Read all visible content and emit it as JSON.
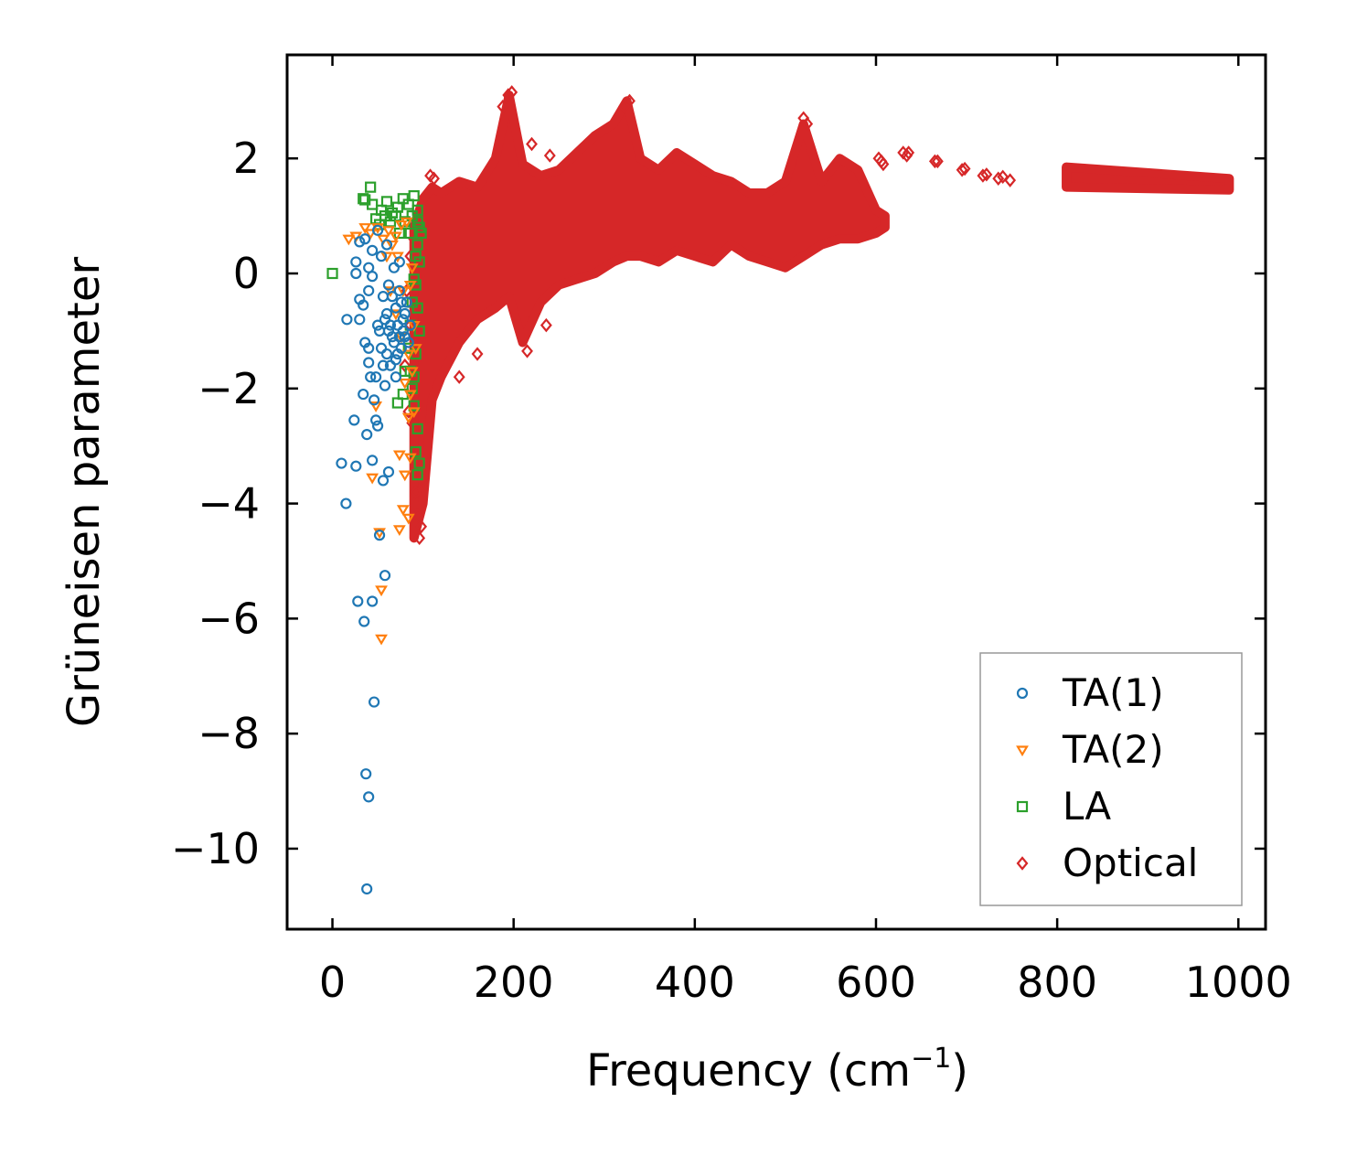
{
  "chart_data": {
    "type": "scatter",
    "title": "",
    "xlabel": "Frequency (cm",
    "xlabel_sup": "−1",
    "xlabel_close": ")",
    "ylabel": "Grüneisen parameter",
    "xlim": [
      -50,
      1030
    ],
    "ylim": [
      -11.4,
      3.8
    ],
    "xticks": [
      0,
      200,
      400,
      600,
      800,
      1000
    ],
    "xtick_labels": [
      "0",
      "200",
      "400",
      "600",
      "800",
      "1000"
    ],
    "yticks": [
      2,
      0,
      -2,
      -4,
      -6,
      -8,
      -10
    ],
    "ytick_labels": [
      "2",
      "0",
      "−2",
      "−4",
      "−6",
      "−8",
      "−10"
    ],
    "grid": false,
    "legend_position": "lower-right",
    "series": [
      {
        "name": "TA(1)",
        "marker": "circle",
        "color": "#1f77b4",
        "points": [
          [
            38,
            -10.7
          ],
          [
            40,
            -9.1
          ],
          [
            37,
            -8.7
          ],
          [
            46,
            -7.45
          ],
          [
            35,
            -6.05
          ],
          [
            28,
            -5.7
          ],
          [
            44,
            -5.7
          ],
          [
            58,
            -5.25
          ],
          [
            52,
            -4.55
          ],
          [
            15,
            -4.0
          ],
          [
            62,
            -3.45
          ],
          [
            10,
            -3.3
          ],
          [
            26,
            -3.35
          ],
          [
            44,
            -3.25
          ],
          [
            56,
            -3.6
          ],
          [
            38,
            -2.8
          ],
          [
            24,
            -2.55
          ],
          [
            48,
            -2.55
          ],
          [
            50,
            -2.65
          ],
          [
            34,
            -2.1
          ],
          [
            46,
            -2.2
          ],
          [
            58,
            -1.95
          ],
          [
            48,
            -1.8
          ],
          [
            40,
            -1.55
          ],
          [
            42,
            -1.8
          ],
          [
            36,
            -1.2
          ],
          [
            40,
            -1.3
          ],
          [
            56,
            -1.6
          ],
          [
            16,
            -0.8
          ],
          [
            30,
            -0.8
          ],
          [
            50,
            -0.9
          ],
          [
            34,
            -0.55
          ],
          [
            30,
            -0.45
          ],
          [
            40,
            -0.3
          ],
          [
            26,
            0.0
          ],
          [
            44,
            -0.05
          ],
          [
            26,
            0.2
          ],
          [
            44,
            0.4
          ],
          [
            30,
            0.55
          ],
          [
            36,
            0.6
          ],
          [
            50,
            0.75
          ],
          [
            40,
            0.1
          ],
          [
            54,
            0.3
          ],
          [
            60,
            0.5
          ],
          [
            62,
            -0.2
          ],
          [
            66,
            -0.4
          ],
          [
            70,
            -0.6
          ],
          [
            72,
            -0.9
          ],
          [
            74,
            -1.1
          ],
          [
            76,
            -1.3
          ],
          [
            78,
            -1.0
          ],
          [
            80,
            -0.7
          ],
          [
            68,
            -1.2
          ],
          [
            64,
            -0.9
          ],
          [
            60,
            -0.7
          ],
          [
            82,
            -0.5
          ],
          [
            84,
            -1.2
          ],
          [
            70,
            -1.5
          ],
          [
            74,
            -0.3
          ],
          [
            78,
            -0.8
          ],
          [
            66,
            -1.1
          ],
          [
            72,
            -1.4
          ],
          [
            76,
            -0.5
          ],
          [
            80,
            -1.1
          ],
          [
            86,
            -0.9
          ],
          [
            62,
            -1.0
          ],
          [
            58,
            -0.8
          ],
          [
            54,
            -1.3
          ],
          [
            52,
            -1.0
          ],
          [
            56,
            -0.4
          ],
          [
            68,
            0.1
          ],
          [
            74,
            0.2
          ],
          [
            70,
            -1.8
          ],
          [
            64,
            -1.6
          ],
          [
            60,
            -1.4
          ]
        ]
      },
      {
        "name": "TA(2)",
        "marker": "triangle-down",
        "color": "#ff7f0e",
        "points": [
          [
            54,
            -6.35
          ],
          [
            54,
            -5.5
          ],
          [
            52,
            -4.5
          ],
          [
            74,
            -4.45
          ],
          [
            78,
            -4.1
          ],
          [
            84,
            -4.25
          ],
          [
            44,
            -3.55
          ],
          [
            80,
            -3.5
          ],
          [
            86,
            -3.2
          ],
          [
            74,
            -3.15
          ],
          [
            48,
            -2.3
          ],
          [
            84,
            -2.5
          ],
          [
            18,
            0.6
          ],
          [
            26,
            0.65
          ],
          [
            36,
            0.8
          ],
          [
            42,
            0.7
          ],
          [
            50,
            0.8
          ],
          [
            56,
            0.6
          ],
          [
            62,
            0.75
          ],
          [
            66,
            0.5
          ],
          [
            70,
            0.65
          ],
          [
            76,
            0.85
          ],
          [
            82,
            0.9
          ],
          [
            70,
            -0.7
          ],
          [
            76,
            -1.1
          ],
          [
            84,
            -1.4
          ],
          [
            88,
            -1.7
          ],
          [
            80,
            -1.9
          ],
          [
            86,
            -2.1
          ],
          [
            90,
            -2.4
          ],
          [
            78,
            -0.3
          ],
          [
            60,
            0.3
          ],
          [
            64,
            -0.3
          ],
          [
            72,
            0.3
          ],
          [
            88,
            0.1
          ],
          [
            90,
            -0.9
          ],
          [
            92,
            -1.3
          ],
          [
            86,
            -0.2
          ]
        ]
      },
      {
        "name": "LA",
        "marker": "square",
        "color": "#2ca02c",
        "points": [
          [
            0,
            0.0
          ],
          [
            42,
            1.5
          ],
          [
            34,
            1.3
          ],
          [
            44,
            1.2
          ],
          [
            36,
            1.28
          ],
          [
            48,
            0.95
          ],
          [
            54,
            1.1
          ],
          [
            60,
            1.25
          ],
          [
            66,
            1.05
          ],
          [
            72,
            1.15
          ],
          [
            78,
            1.3
          ],
          [
            84,
            1.2
          ],
          [
            90,
            1.35
          ],
          [
            94,
            1.1
          ],
          [
            96,
            0.8
          ],
          [
            94,
            0.5
          ],
          [
            96,
            0.2
          ],
          [
            92,
            -0.2
          ],
          [
            94,
            -0.6
          ],
          [
            96,
            -1.0
          ],
          [
            92,
            -1.4
          ],
          [
            90,
            -1.8
          ],
          [
            88,
            -2.0
          ],
          [
            86,
            -1.7
          ],
          [
            90,
            -2.3
          ],
          [
            94,
            -2.7
          ],
          [
            92,
            -3.1
          ],
          [
            94,
            -3.5
          ],
          [
            96,
            -3.3
          ],
          [
            72,
            -2.25
          ],
          [
            78,
            -2.1
          ],
          [
            80,
            -1.7
          ],
          [
            84,
            -1.3
          ],
          [
            86,
            -0.9
          ],
          [
            88,
            -0.5
          ],
          [
            90,
            -0.1
          ],
          [
            92,
            0.3
          ],
          [
            86,
            0.7
          ],
          [
            80,
            0.9
          ],
          [
            74,
            0.7
          ],
          [
            70,
            1.0
          ],
          [
            64,
            0.9
          ],
          [
            58,
            1.0
          ],
          [
            52,
            0.85
          ],
          [
            88,
            1.0
          ],
          [
            94,
            0.9
          ],
          [
            98,
            0.7
          ]
        ]
      },
      {
        "name": "Optical",
        "marker": "diamond",
        "color": "#d62728",
        "envelope": {
          "x": [
            90,
            100,
            110,
            120,
            140,
            160,
            180,
            195,
            210,
            230,
            250,
            270,
            290,
            310,
            325,
            340,
            360,
            380,
            400,
            420,
            440,
            460,
            480,
            500,
            520,
            540,
            560,
            580,
            600,
            610
          ],
          "upper": [
            0.8,
            1.3,
            1.5,
            1.4,
            1.6,
            1.5,
            2.0,
            3.1,
            1.9,
            1.7,
            1.8,
            2.1,
            2.4,
            2.6,
            3.0,
            2.0,
            1.8,
            2.1,
            1.9,
            1.7,
            1.6,
            1.4,
            1.4,
            1.6,
            2.6,
            1.6,
            2.0,
            1.8,
            1.1,
            1.0
          ],
          "lower": [
            -4.6,
            -4.0,
            -2.2,
            -1.8,
            -1.2,
            -0.8,
            -0.6,
            -0.4,
            -1.2,
            -0.5,
            -0.2,
            -0.1,
            0.0,
            0.2,
            0.3,
            0.3,
            0.2,
            0.4,
            0.3,
            0.2,
            0.5,
            0.3,
            0.2,
            0.1,
            0.3,
            0.5,
            0.6,
            0.6,
            0.7,
            0.8
          ]
        },
        "hf_band": {
          "x": [
            810,
            990
          ],
          "upper": [
            1.85,
            1.65
          ],
          "lower": [
            1.5,
            1.45
          ]
        },
        "points": [
          [
            603,
            2.0
          ],
          [
            606,
            1.95
          ],
          [
            608,
            1.9
          ],
          [
            630,
            2.1
          ],
          [
            634,
            2.05
          ],
          [
            636,
            2.1
          ],
          [
            665,
            1.95
          ],
          [
            668,
            1.95
          ],
          [
            695,
            1.8
          ],
          [
            698,
            1.82
          ],
          [
            718,
            1.7
          ],
          [
            722,
            1.72
          ],
          [
            735,
            1.65
          ],
          [
            740,
            1.68
          ],
          [
            748,
            1.62
          ],
          [
            198,
            3.15
          ],
          [
            194,
            3.1
          ],
          [
            188,
            2.9
          ],
          [
            328,
            3.0
          ],
          [
            322,
            2.9
          ],
          [
            520,
            2.7
          ],
          [
            524,
            2.6
          ],
          [
            108,
            1.7
          ],
          [
            112,
            1.65
          ],
          [
            220,
            2.25
          ],
          [
            240,
            2.05
          ],
          [
            140,
            -1.8
          ],
          [
            160,
            -1.4
          ],
          [
            215,
            -1.35
          ],
          [
            236,
            -0.9
          ],
          [
            96,
            -4.6
          ],
          [
            98,
            -4.4
          ],
          [
            94,
            -4.2
          ],
          [
            92,
            -3.8
          ],
          [
            100,
            -3.6
          ],
          [
            84,
            -2.4
          ],
          [
            88,
            -2.6
          ],
          [
            80,
            -1.6
          ],
          [
            86,
            -0.9
          ],
          [
            82,
            -0.3
          ],
          [
            86,
            0.3
          ],
          [
            90,
            0.6
          ],
          [
            96,
            1.05
          ]
        ]
      }
    ]
  }
}
